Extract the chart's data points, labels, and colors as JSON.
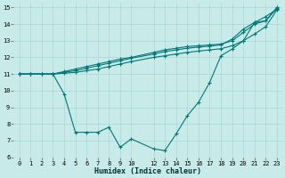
{
  "xlabel": "Humidex (Indice chaleur)",
  "bg_color": "#c8eae8",
  "grid_color": "#a8d8d8",
  "line_color": "#007878",
  "xlim": [
    -0.5,
    23.5
  ],
  "ylim": [
    6,
    15.3
  ],
  "xticks": [
    0,
    1,
    2,
    3,
    4,
    5,
    6,
    7,
    8,
    9,
    10,
    12,
    13,
    14,
    15,
    16,
    17,
    18,
    19,
    20,
    21,
    22,
    23
  ],
  "yticks": [
    6,
    7,
    8,
    9,
    10,
    11,
    12,
    13,
    14,
    15
  ],
  "series": [
    {
      "x": [
        0,
        1,
        2,
        3,
        4,
        5,
        6,
        7,
        8,
        9,
        10,
        12,
        13,
        14,
        15,
        16,
        17,
        18,
        19,
        20,
        21,
        22,
        23
      ],
      "y": [
        11,
        11,
        11,
        11,
        11.15,
        11.3,
        11.45,
        11.6,
        11.75,
        11.9,
        12.0,
        12.3,
        12.45,
        12.55,
        12.65,
        12.7,
        12.75,
        12.8,
        13.0,
        13.5,
        14.0,
        14.2,
        14.95
      ]
    },
    {
      "x": [
        0,
        1,
        2,
        3,
        4,
        5,
        6,
        7,
        8,
        9,
        10,
        12,
        13,
        14,
        15,
        16,
        17,
        18,
        19,
        20,
        21,
        22,
        23
      ],
      "y": [
        11,
        11,
        11,
        11,
        11.1,
        11.2,
        11.35,
        11.5,
        11.65,
        11.8,
        11.95,
        12.2,
        12.35,
        12.45,
        12.55,
        12.62,
        12.68,
        12.75,
        13.1,
        13.7,
        14.1,
        14.45,
        14.9
      ]
    },
    {
      "x": [
        0,
        1,
        2,
        3,
        4,
        5,
        6,
        7,
        8,
        9,
        10,
        12,
        13,
        14,
        15,
        16,
        17,
        18,
        19,
        20,
        21,
        22,
        23
      ],
      "y": [
        11,
        11,
        11,
        11,
        11.05,
        11.1,
        11.2,
        11.3,
        11.45,
        11.6,
        11.75,
        12.0,
        12.1,
        12.2,
        12.3,
        12.38,
        12.45,
        12.52,
        12.7,
        13.0,
        13.4,
        13.85,
        14.85
      ]
    },
    {
      "comment": "V-shape line: (0,11),(3,11),(4,9.8),(5,7.5),(6,7.5),(7,7.5),(8,7.8),(9,6.6),(10,7.1),(12,6.5),(13,6.4),(14,7.4),(15,8.5),(16,9.3),(17,10.5),(18,12.1),(19,12.5),(20,13.0),(21,14.1),(22,14.2),(23,15.0)",
      "x": [
        0,
        3,
        4,
        5,
        6,
        7,
        8,
        9,
        10,
        12,
        13,
        14,
        15,
        16,
        17,
        18,
        19,
        20,
        21,
        22,
        23
      ],
      "y": [
        11,
        11,
        9.8,
        7.5,
        7.5,
        7.5,
        7.8,
        6.6,
        7.1,
        6.5,
        6.4,
        7.4,
        8.5,
        9.3,
        10.5,
        12.1,
        12.5,
        13.0,
        14.1,
        14.2,
        15.0
      ]
    }
  ]
}
